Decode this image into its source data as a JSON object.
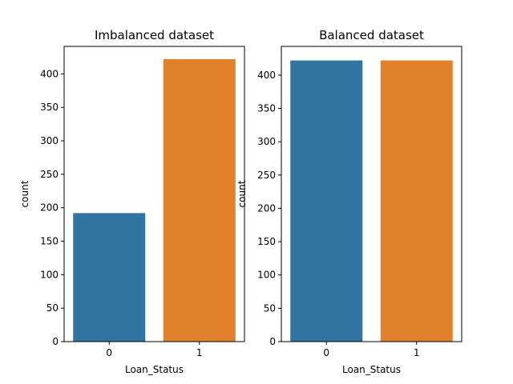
{
  "chart_data": [
    {
      "type": "bar",
      "title": "Imbalanced dataset",
      "xlabel": "Loan_Status",
      "ylabel": "count",
      "categories": [
        "0",
        "1"
      ],
      "values": [
        192,
        422
      ],
      "colors": [
        "#3274a1",
        "#e1812c"
      ],
      "ylim": [
        0,
        441.1
      ],
      "yticks": [
        0,
        50,
        100,
        150,
        200,
        250,
        300,
        350,
        400
      ],
      "grid": false
    },
    {
      "type": "bar",
      "title": "Balanced dataset",
      "xlabel": "Loan_Status",
      "ylabel": "count",
      "categories": [
        "0",
        "1"
      ],
      "values": [
        422,
        422
      ],
      "colors": [
        "#3274a1",
        "#e1812c"
      ],
      "ylim": [
        0,
        443.1
      ],
      "yticks": [
        0,
        50,
        100,
        150,
        200,
        250,
        300,
        350,
        400
      ],
      "grid": false
    }
  ]
}
